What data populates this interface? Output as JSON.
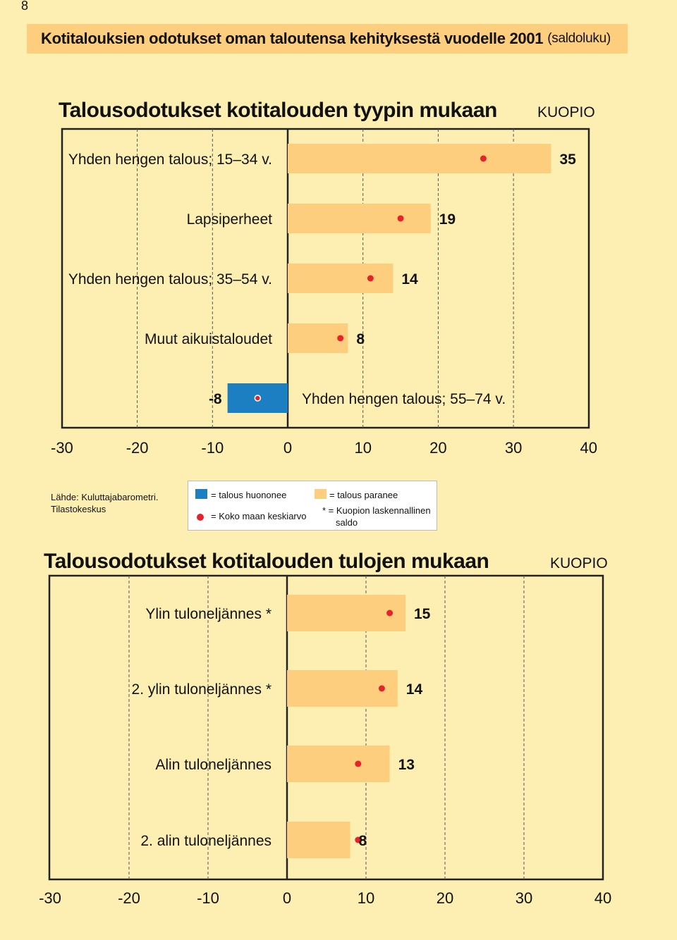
{
  "page_number": "8",
  "banner": {
    "title": "Kotitalouksien odotukset oman taloutensa kehityksestä vuodelle 2001",
    "subtitle": "(saldoluku)"
  },
  "colors": {
    "background": "#fdefb2",
    "banner": "#fcce7e",
    "positive": "#fcce7e",
    "negative": "#1c7fc2",
    "marker": "#e8222a"
  },
  "source": {
    "line1": "Lähde: Kuluttajabarometri.",
    "line2": "Tilastokeskus"
  },
  "legend": {
    "negative": "= talous huononee",
    "positive": "= talous paranee",
    "marker": "= Koko maan keskiarvo",
    "note_line1": "* = Kuopion laskennallinen",
    "note_line2": "saldo"
  },
  "chart_data": [
    {
      "type": "bar",
      "orientation": "horizontal",
      "title": "Talousodotukset kotitalouden tyypin mukaan",
      "region": "KUOPIO",
      "categories": [
        "Yhden hengen talous; 15–34 v.",
        "Lapsiperheet",
        "Yhden hengen talous; 35–54 v.",
        "Muut aikuistaloudet",
        "Yhden hengen talous; 55–74 v."
      ],
      "values": [
        35,
        19,
        14,
        8,
        -8
      ],
      "value_labels": [
        "35",
        "19",
        "14",
        "8",
        "-8"
      ],
      "national_average": [
        26,
        15,
        11,
        7,
        -4
      ],
      "xlim": [
        -30,
        40
      ],
      "xticks": [
        "-30",
        "-20",
        "-10",
        "0",
        "10",
        "20",
        "30",
        "40"
      ],
      "grid": true
    },
    {
      "type": "bar",
      "orientation": "horizontal",
      "title": "Talousodotukset kotitalouden tulojen mukaan",
      "region": "KUOPIO",
      "categories": [
        "Ylin tuloneljännes *",
        "2. ylin tuloneljännes *",
        "Alin tuloneljännes",
        "2. alin tuloneljännes"
      ],
      "values": [
        15,
        14,
        13,
        8
      ],
      "value_labels": [
        "15",
        "14",
        "13",
        "8"
      ],
      "national_average": [
        13,
        12,
        9,
        9
      ],
      "xlim": [
        -30,
        40
      ],
      "xticks": [
        "-30",
        "-20",
        "-10",
        "0",
        "10",
        "20",
        "30",
        "40"
      ],
      "grid": true
    }
  ]
}
